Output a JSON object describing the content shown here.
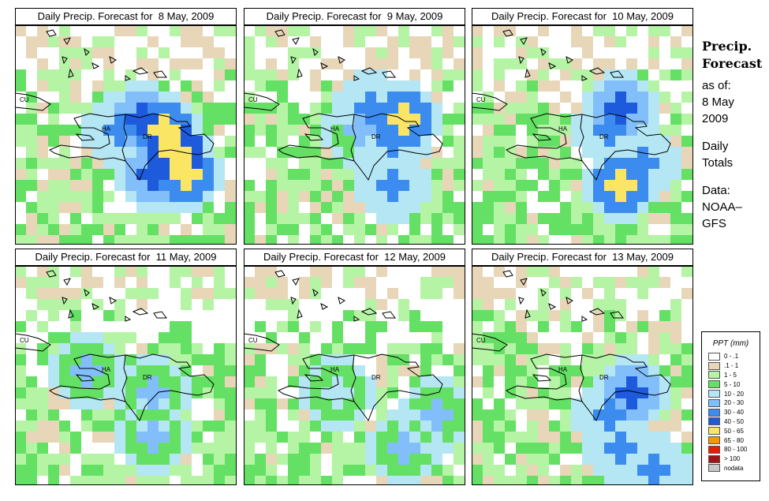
{
  "panels": [
    {
      "title": "Daily Precip. Forecast for  8 May, 2009",
      "pattern": 0
    },
    {
      "title": "Daily Precip. Forecast for  9 May, 2009",
      "pattern": 1
    },
    {
      "title": "Daily Precip. Forecast for  10 May, 2009",
      "pattern": 2
    },
    {
      "title": "Daily Precip. Forecast for  11 May, 2009",
      "pattern": 3
    },
    {
      "title": "Daily Precip. Forecast for  12 May, 2009",
      "pattern": 4
    },
    {
      "title": "Daily Precip. Forecast for  13 May, 2009",
      "pattern": 5
    }
  ],
  "map_labels": {
    "cuba": "CU",
    "haiti": "HA",
    "dominican_republic": "DR"
  },
  "side": {
    "heading_line1": "Precip.",
    "heading_line2": "Forecast",
    "asof_line1": "as of:",
    "asof_line2": "8 May",
    "asof_line3": "2009",
    "daily_line1": "Daily",
    "daily_line2": "Totals",
    "data_line1": "Data:",
    "data_line2": "NOAA–",
    "data_line3": "GFS"
  },
  "legend": {
    "title": "PPT (mm)",
    "items": [
      {
        "label": "0 - .1",
        "color": "#ffffff"
      },
      {
        "label": ".1 - 1",
        "color": "#e8d6b8"
      },
      {
        "label": "1 - 5",
        "color": "#b4f4a4"
      },
      {
        "label": "5 - 10",
        "color": "#64e064"
      },
      {
        "label": "10 - 20",
        "color": "#b4e6f4"
      },
      {
        "label": "20 - 30",
        "color": "#82befa"
      },
      {
        "label": "30 - 40",
        "color": "#3c8cf0"
      },
      {
        "label": "40 - 50",
        "color": "#1e5adc"
      },
      {
        "label": "50 - 65",
        "color": "#fae664"
      },
      {
        "label": "65 - 80",
        "color": "#fa9600"
      },
      {
        "label": "80 - 100",
        "color": "#e61e00"
      },
      {
        "label": "> 100",
        "color": "#a01414"
      },
      {
        "label": "nodata",
        "color": "#c8c8c8"
      }
    ]
  }
}
